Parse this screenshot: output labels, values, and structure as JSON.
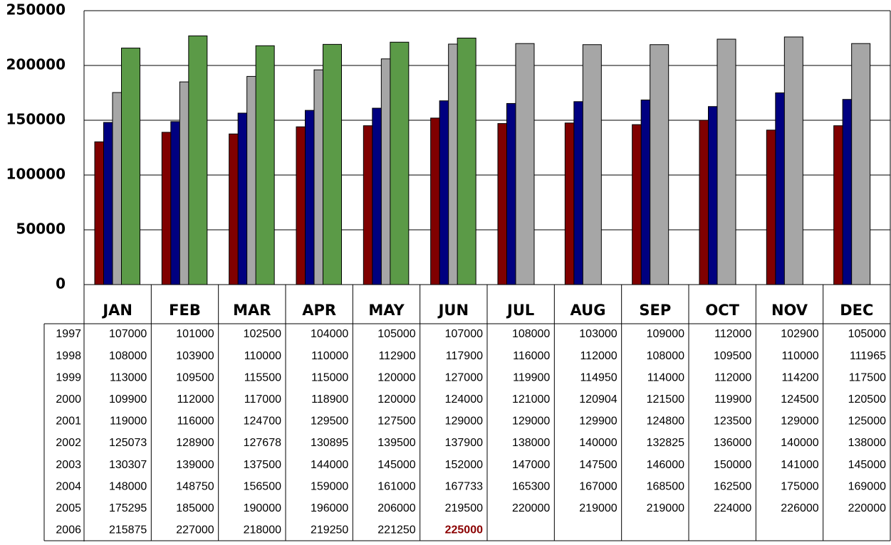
{
  "chart_data": {
    "type": "bar",
    "categories": [
      "JAN",
      "FEB",
      "MAR",
      "APR",
      "MAY",
      "JUN",
      "JUL",
      "AUG",
      "SEP",
      "OCT",
      "NOV",
      "DEC"
    ],
    "series": [
      {
        "name": "1997",
        "values": [
          107000,
          101000,
          102500,
          104000,
          105000,
          107000,
          108000,
          103000,
          109000,
          112000,
          102900,
          105000
        ]
      },
      {
        "name": "1998",
        "values": [
          108000,
          103900,
          110000,
          110000,
          112900,
          117900,
          116000,
          112000,
          108000,
          109500,
          110000,
          111965
        ]
      },
      {
        "name": "1999",
        "values": [
          113000,
          109500,
          115500,
          115000,
          120000,
          127000,
          119900,
          114950,
          114000,
          112000,
          114200,
          117500
        ]
      },
      {
        "name": "2000",
        "values": [
          109900,
          112000,
          117000,
          118900,
          120000,
          124000,
          121000,
          120904,
          121500,
          119900,
          124500,
          120500
        ]
      },
      {
        "name": "2001",
        "values": [
          119000,
          116000,
          124700,
          129500,
          127500,
          129000,
          129000,
          129900,
          124800,
          123500,
          129000,
          125000
        ]
      },
      {
        "name": "2002",
        "values": [
          125073,
          128900,
          127678,
          130895,
          139500,
          137900,
          138000,
          140000,
          132825,
          136000,
          140000,
          138000
        ]
      },
      {
        "name": "2003",
        "color": "#800000",
        "values": [
          130307,
          139000,
          137500,
          144000,
          145000,
          152000,
          147000,
          147500,
          146000,
          150000,
          141000,
          145000
        ]
      },
      {
        "name": "2004",
        "color": "#000080",
        "values": [
          148000,
          148750,
          156500,
          159000,
          161000,
          167733,
          165300,
          167000,
          168500,
          162500,
          175000,
          169000
        ]
      },
      {
        "name": "2005",
        "color": "#a6a6a6",
        "values": [
          175295,
          185000,
          190000,
          196000,
          206000,
          219500,
          220000,
          219000,
          219000,
          224000,
          226000,
          220000
        ]
      },
      {
        "name": "2006",
        "color": "#5b9a47",
        "values": [
          215875,
          227000,
          218000,
          219250,
          221250,
          225000,
          null,
          null,
          null,
          null,
          null,
          null
        ]
      }
    ],
    "ylim": [
      0,
      250000
    ],
    "yticks": [
      0,
      50000,
      100000,
      150000,
      200000,
      250000
    ],
    "grid": true
  }
}
